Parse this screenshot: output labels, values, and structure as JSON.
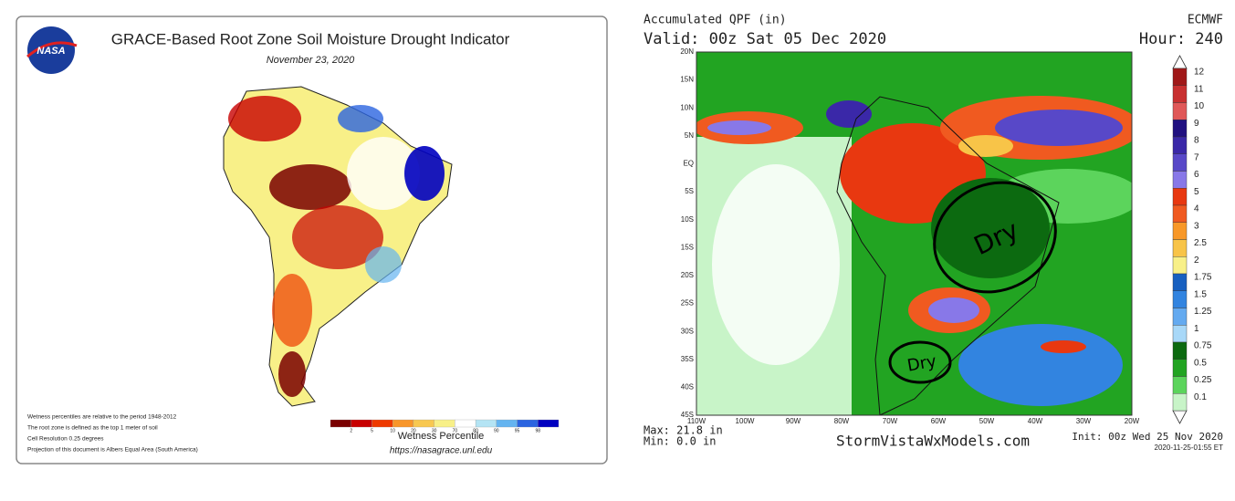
{
  "left_panel": {
    "logo": "NASA",
    "title": "GRACE-Based Root Zone Soil Moisture Drought Indicator",
    "date": "November 23, 2020",
    "notes": [
      "Wetness percentiles are relative to the period 1948-2012",
      "The root zone is defined as the top 1 meter of soil",
      "Cell Resolution 0.25 degrees",
      "Projection of this document is Albers Equal Area (South America)"
    ],
    "legend": {
      "title": "Wetness Percentile",
      "labels": [
        2,
        5,
        10,
        20,
        30,
        70,
        80,
        90,
        95,
        98
      ],
      "colors": [
        "#7a0000",
        "#c80000",
        "#ee3a00",
        "#f8962a",
        "#f8c850",
        "#f8f088",
        "#ffffff",
        "#b4e4f4",
        "#64b4f0",
        "#2a64e0",
        "#0000c0"
      ]
    },
    "url": "https://nasagrace.unl.edu"
  },
  "right_panel": {
    "title": "Accumulated QPF (in)",
    "valid": "Valid: 00z Sat 05 Dec 2020",
    "model": "ECMWF",
    "hour": "Hour: 240",
    "lat_labels": [
      "20N",
      "15N",
      "10N",
      "5N",
      "EQ",
      "5S",
      "10S",
      "15S",
      "20S",
      "25S",
      "30S",
      "35S",
      "40S",
      "45S"
    ],
    "lon_labels": [
      "110W",
      "100W",
      "90W",
      "80W",
      "70W",
      "60W",
      "50W",
      "40W",
      "30W",
      "20W"
    ],
    "colorbar": {
      "labels": [
        "12",
        "11",
        "10",
        "9",
        "8",
        "7",
        "6",
        "5",
        "4",
        "3",
        "2.5",
        "2",
        "1.75",
        "1.5",
        "1.25",
        "1",
        "0.75",
        "0.5",
        "0.25",
        "0.1"
      ],
      "colors": [
        "#a01818",
        "#c83030",
        "#e05858",
        "#201080",
        "#3a28a8",
        "#5848c8",
        "#8878e8",
        "#e83810",
        "#f05a20",
        "#f89828",
        "#f8c448",
        "#f8f088",
        "#1860c0",
        "#3284e0",
        "#64aaf0",
        "#a8d8f8",
        "#0c6a10",
        "#22a422",
        "#5cd45c",
        "#c8f4c8"
      ]
    },
    "annotations": [
      "Dry",
      "Dry"
    ],
    "max": "Max: 21.8 in",
    "min": "Min: 0.0 in",
    "site": "StormVistaWxModels.com",
    "init": "Init: 00z Wed 25 Nov 2020",
    "stamp": "2020-11-25-01:55 ET"
  }
}
